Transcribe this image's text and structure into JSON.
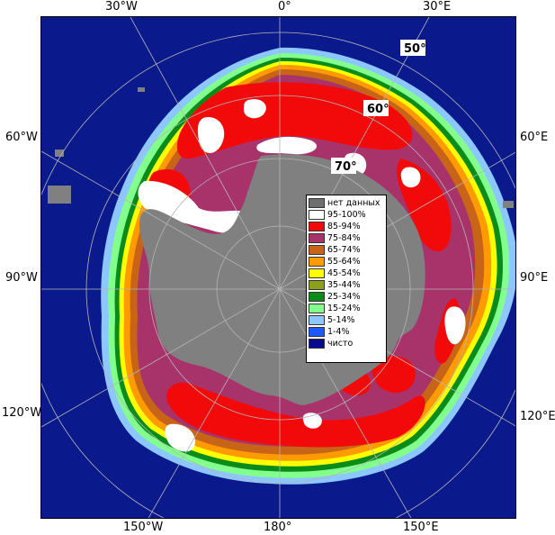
{
  "map": {
    "lon_labels": {
      "top_30w": "30°W",
      "top_0": "0°",
      "top_30e": "30°E",
      "left_60w": "60°W",
      "left_90w": "90°W",
      "left_120w": "120°W",
      "right_60e": "60°E",
      "right_90e": "90°E",
      "right_120e": "120°E",
      "bottom_150w": "150°W",
      "bottom_180": "180°",
      "bottom_150e": "150°E"
    },
    "lat_labels": {
      "lat_50": "50°",
      "lat_60": "60°",
      "lat_70": "70°"
    },
    "colors": {
      "open_water": "#0a1a8c",
      "no_data": "#808080",
      "land_outline": "#707070"
    }
  },
  "legend": {
    "items": [
      {
        "label": "нет данных",
        "color": "#6e6e6e"
      },
      {
        "label": "95-100%",
        "color": "#ffffff"
      },
      {
        "label": "85-94%",
        "color": "#f20a0a"
      },
      {
        "label": "75-84%",
        "color": "#a8336b"
      },
      {
        "label": "65-74%",
        "color": "#c86418"
      },
      {
        "label": "55-64%",
        "color": "#ff9a00"
      },
      {
        "label": "45-54%",
        "color": "#ffff00"
      },
      {
        "label": "35-44%",
        "color": "#8ca018"
      },
      {
        "label": "25-34%",
        "color": "#0a8c1a"
      },
      {
        "label": "15-24%",
        "color": "#82ff8c"
      },
      {
        "label": "5-14%",
        "color": "#8cc8ff"
      },
      {
        "label": "1-4%",
        "color": "#1e5aff"
      },
      {
        "label": "чисто",
        "color": "#0a0a8c"
      }
    ]
  }
}
